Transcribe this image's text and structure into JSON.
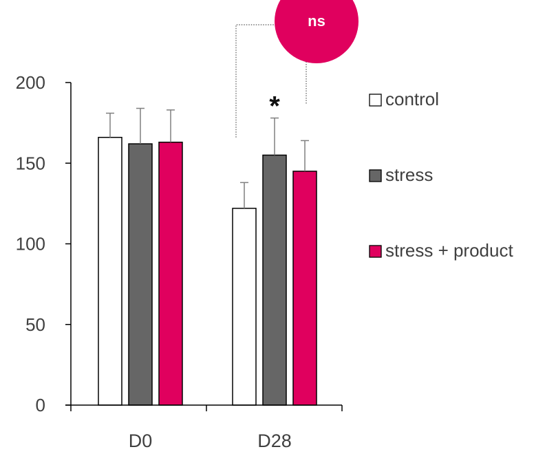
{
  "chart_data": {
    "type": "bar",
    "categories": [
      "D0",
      "D28"
    ],
    "series": [
      {
        "name": "control",
        "color": "#ffffff",
        "values": [
          166,
          122
        ],
        "errors": [
          15,
          16
        ]
      },
      {
        "name": "stress",
        "color": "#666666",
        "values": [
          162,
          155
        ],
        "errors": [
          22,
          23
        ]
      },
      {
        "name": "stress + product",
        "color": "#e0005e",
        "values": [
          163,
          145
        ],
        "errors": [
          20,
          19
        ]
      }
    ],
    "ylim": [
      0,
      200
    ],
    "yticks": [
      0,
      50,
      100,
      150,
      200
    ],
    "legend_position": "right",
    "annotations": {
      "significance_star": "*",
      "ns_label": "ns",
      "ns_color": "#e0005e"
    }
  }
}
